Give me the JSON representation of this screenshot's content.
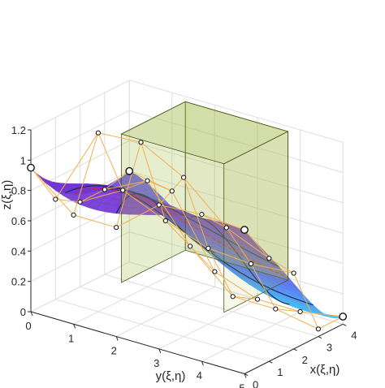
{
  "chart_data": {
    "type": "surface3d",
    "title": "",
    "xlabel": "x(ξ,η)",
    "ylabel": "y(ξ,η)",
    "zlabel": "z(ξ,η)",
    "xlim": [
      0,
      4
    ],
    "ylim": [
      0,
      5
    ],
    "zlim": [
      0,
      1.2
    ],
    "x_ticks": [
      "0",
      "1",
      "2",
      "3",
      "4"
    ],
    "y_ticks": [
      "0",
      "1",
      "2",
      "3",
      "4",
      "5"
    ],
    "z_ticks": [
      "0",
      "0.2",
      "0.4",
      "0.6",
      "0.8",
      "1",
      "1.2"
    ],
    "grid": true,
    "surface_colors": [
      "#3ad3f6",
      "#4f7df0",
      "#6a3fe0",
      "#7a2ec4"
    ],
    "box_color": "#7f9a2e",
    "control_net_color": "#f0b050",
    "section_curve_color": "#1a2c50",
    "highlight_curve_color": "#e02020",
    "control_points": [
      {
        "x": 0,
        "y": 0,
        "z": 0.95
      },
      {
        "x": 0,
        "y": 1,
        "z": 0.72
      },
      {
        "x": 0,
        "y": 2,
        "z": 0.72
      },
      {
        "x": 0,
        "y": 3,
        "z": 0.95
      },
      {
        "x": 0,
        "y": 4,
        "z": 0.97
      },
      {
        "x": 0,
        "y": 5,
        "z": 0.95
      },
      {
        "x": 1,
        "y": 0,
        "z": 0.66
      },
      {
        "x": 1,
        "y": 1,
        "z": 1.18
      },
      {
        "x": 1,
        "y": 2,
        "z": 1.2
      },
      {
        "x": 1,
        "y": 3,
        "z": 1.05
      },
      {
        "x": 1,
        "y": 4,
        "z": 0.8
      },
      {
        "x": 1,
        "y": 5,
        "z": 0.68
      },
      {
        "x": 2,
        "y": 0,
        "z": 0.56
      },
      {
        "x": 2,
        "y": 1,
        "z": 0.72
      },
      {
        "x": 2,
        "y": 2,
        "z": 0.6
      },
      {
        "x": 2,
        "y": 3,
        "z": 0.5
      },
      {
        "x": 2,
        "y": 4,
        "z": 0.48
      },
      {
        "x": 2,
        "y": 5,
        "z": 0.5
      },
      {
        "x": 3,
        "y": 0,
        "z": 0.56
      },
      {
        "x": 3,
        "y": 1,
        "z": 0.7
      },
      {
        "x": 3,
        "y": 2,
        "z": 0.35
      },
      {
        "x": 3,
        "y": 3,
        "z": 0.1
      },
      {
        "x": 3,
        "y": 4,
        "z": 0.1
      },
      {
        "x": 3,
        "y": 5,
        "z": 0.05
      },
      {
        "x": 4,
        "y": 0,
        "z": 0.6
      },
      {
        "x": 4,
        "y": 1,
        "z": 0.55
      },
      {
        "x": 4,
        "y": 2,
        "z": 0.1
      },
      {
        "x": 4,
        "y": 3,
        "z": 0.0
      },
      {
        "x": 4,
        "y": 4,
        "z": 0.0
      },
      {
        "x": 4,
        "y": 5,
        "z": 0.05
      }
    ]
  }
}
